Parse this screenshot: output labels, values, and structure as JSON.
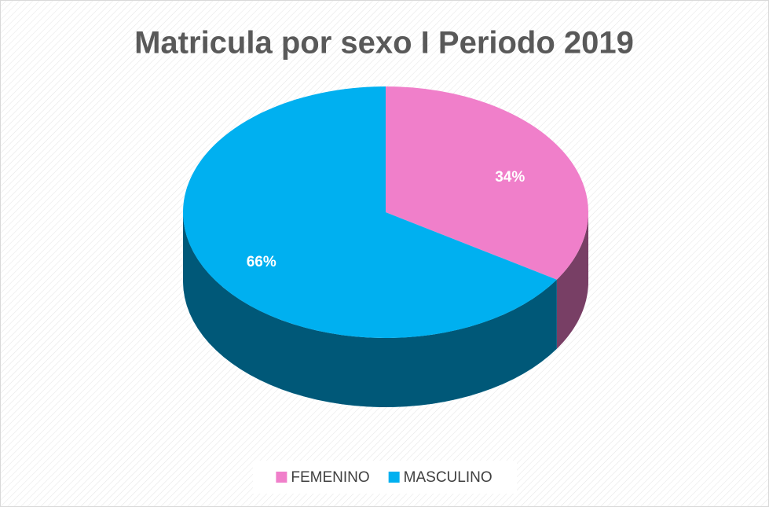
{
  "chart_data": {
    "type": "pie",
    "title": "Matricula por sexo I Periodo 2019",
    "categories": [
      "FEMENINO",
      "MASCULINO"
    ],
    "values": [
      34,
      66
    ],
    "value_labels": [
      "34%",
      "66%"
    ],
    "colors": [
      "#f07fca",
      "#00b0f0"
    ],
    "legend": "bottom"
  }
}
